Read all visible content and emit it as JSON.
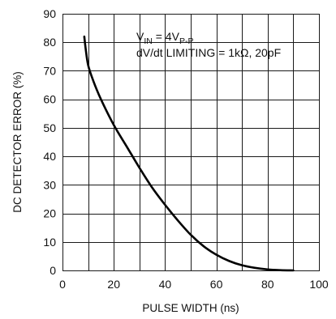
{
  "chart_data": {
    "type": "line",
    "title": "",
    "xlabel": "PULSE WIDTH (ns)",
    "ylabel": "DC DETECTOR ERROR (%)",
    "xlim": [
      0,
      100
    ],
    "ylim": [
      0,
      90
    ],
    "x_ticks": [
      0,
      20,
      40,
      60,
      80,
      100
    ],
    "y_ticks": [
      0,
      10,
      20,
      30,
      40,
      50,
      60,
      70,
      80,
      90
    ],
    "x_grid_step": 10,
    "y_grid_step": 10,
    "grid": true,
    "annotation": {
      "line1_main": "V",
      "line1_sub1": "IN",
      "line1_mid": " = 4V",
      "line1_sub2": "P-P",
      "line2": "dV/dt LIMITING = 1kΩ, 20pF"
    },
    "series": [
      {
        "x": [
          8.5,
          9,
          10,
          12,
          15,
          20,
          25,
          30,
          35,
          40,
          45,
          50,
          55,
          60,
          65,
          70,
          75,
          80,
          85,
          90
        ],
        "y": [
          82,
          78,
          72,
          66.5,
          60,
          51,
          43.5,
          36,
          29,
          23,
          17.5,
          12.5,
          8.5,
          5.5,
          3.3,
          1.8,
          0.9,
          0.35,
          0.1,
          0
        ]
      }
    ]
  }
}
